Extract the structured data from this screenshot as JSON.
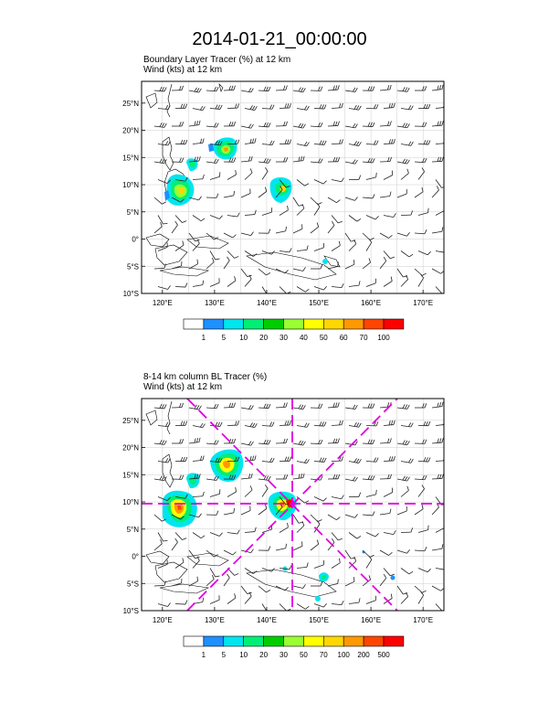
{
  "main_title": "2014-01-21_00:00:00",
  "panels": [
    {
      "title_line1": "Boundary Layer Tracer   (%)     at   12 km",
      "title_line2": "Wind   (kts)     at   12 km",
      "legend_labels": [
        "1",
        "5",
        "10",
        "20",
        "30",
        "40",
        "50",
        "60",
        "70",
        "100"
      ]
    },
    {
      "title_line1": "8-14 km column BL Tracer   (%)",
      "title_line2": "Wind   (kts)     at   12 km",
      "legend_labels": [
        "1",
        "5",
        "10",
        "20",
        "30",
        "50",
        "70",
        "100",
        "200",
        "500"
      ]
    }
  ],
  "map": {
    "lon_labels": [
      "120°E",
      "130°E",
      "140°E",
      "150°E",
      "160°E",
      "170°E"
    ],
    "lat_labels": [
      "25°N",
      "20°N",
      "15°N",
      "10°N",
      "5°N",
      "0°",
      "5°S",
      "10°S"
    ],
    "lon_ticks": [
      120,
      130,
      140,
      150,
      160,
      170
    ],
    "lat_ticks": [
      25,
      20,
      15,
      10,
      5,
      0,
      -5,
      -10
    ],
    "lon_range": [
      116,
      174
    ],
    "lat_range": [
      -10,
      29
    ]
  },
  "colors": {
    "scale": [
      "#ffffff",
      "#1e90ff",
      "#00e5ee",
      "#00ee76",
      "#00cd00",
      "#9aff32",
      "#ffff00",
      "#ffd700",
      "#ff9900",
      "#ff4500",
      "#ff0000"
    ],
    "cross_lines": "#e000e0"
  }
}
